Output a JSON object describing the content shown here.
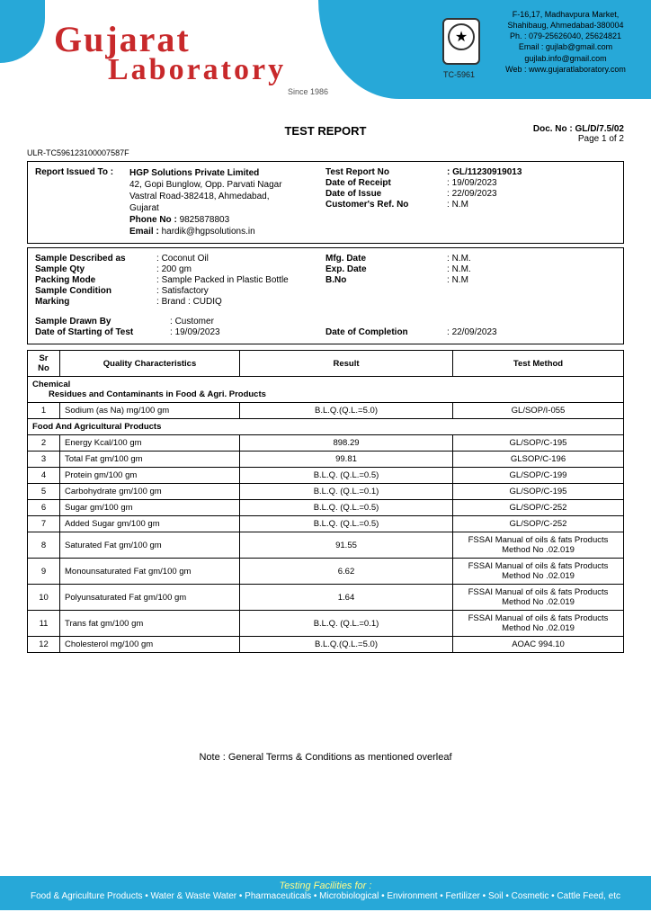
{
  "header": {
    "logo1": "Gujarat",
    "logo2": "Laboratory",
    "since": "Since 1986",
    "tc": "TC-5961",
    "addr1": "F-16,17, Madhavpura Market,",
    "addr2": "Shahibaug, Ahmedabad-380004",
    "ph": "Ph. : 079-25626040, 25624821",
    "em1": "Email : gujlab@gmail.com",
    "em2": "gujlab.info@gmail.com",
    "web": "Web : www.gujaratlaboratory.com"
  },
  "title": "TEST REPORT",
  "docno": "Doc. No : GL/D/7.5/02",
  "pageno": "Page 1 of 2",
  "ulr": "ULR-TC596123100007587F",
  "block1": {
    "issued_label": "Report Issued To :",
    "company": "HGP Solutions Private Limited",
    "a1": "42, Gopi Bunglow, Opp. Parvati Nagar",
    "a2": "Vastral Road-382418, Ahmedabad,",
    "a3": "Gujarat",
    "phone_l": "Phone No :",
    "phone_v": "9825878803",
    "email_l": "Email :",
    "email_v": "hardik@hgpsolutions.in",
    "trn_l": "Test Report No",
    "trn_v": "GL/11230919013",
    "dor_l": "Date of Receipt",
    "dor_v": "19/09/2023",
    "doi_l": "Date of Issue",
    "doi_v": "22/09/2023",
    "crn_l": "Customer's Ref. No",
    "crn_v": "N.M"
  },
  "block2": {
    "desc_l": "Sample Described as",
    "desc_v": "Coconut Oil",
    "qty_l": "Sample Qty",
    "qty_v": "200 gm",
    "pack_l": "Packing Mode",
    "pack_v": "Sample Packed in Plastic Bottle",
    "cond_l": "Sample Condition",
    "cond_v": "Satisfactory",
    "mark_l": "Marking",
    "mark_v": "Brand : CUDIQ",
    "mfg_l": "Mfg. Date",
    "mfg_v": "N.M.",
    "exp_l": "Exp. Date",
    "exp_v": "N.M.",
    "bno_l": "B.No",
    "bno_v": "N.M",
    "drawn_l": "Sample Drawn By",
    "drawn_v": "Customer",
    "start_l": "Date of Starting of Test",
    "start_v": "19/09/2023",
    "comp_l": "Date of Completion",
    "comp_v": "22/09/2023"
  },
  "table": {
    "h_sr": "Sr No",
    "h_char": "Quality Characteristics",
    "h_res": "Result",
    "h_meth": "Test Method",
    "sec1a": "Chemical",
    "sec1b": "Residues and Contaminants in Food & Agri. Products",
    "sec2": "Food And Agricultural Products",
    "rows": [
      {
        "sr": "1",
        "c": "Sodium (as Na) mg/100 gm",
        "r": "B.L.Q.(Q.L.=5.0)",
        "m": "GL/SOP/I-055"
      },
      {
        "sr": "2",
        "c": "Energy Kcal/100 gm",
        "r": "898.29",
        "m": "GL/SOP/C-195"
      },
      {
        "sr": "3",
        "c": "Total Fat gm/100 gm",
        "r": "99.81",
        "m": "GLSOP/C-196"
      },
      {
        "sr": "4",
        "c": "Protein gm/100 gm",
        "r": "B.L.Q. (Q.L.=0.5)",
        "m": "GL/SOP/C-199"
      },
      {
        "sr": "5",
        "c": "Carbohydrate gm/100 gm",
        "r": "B.L.Q. (Q.L.=0.1)",
        "m": "GL/SOP/C-195"
      },
      {
        "sr": "6",
        "c": "Sugar gm/100 gm",
        "r": "B.L.Q. (Q.L.=0.5)",
        "m": "GL/SOP/C-252"
      },
      {
        "sr": "7",
        "c": "Added Sugar gm/100 gm",
        "r": "B.L.Q. (Q.L.=0.5)",
        "m": "GL/SOP/C-252"
      },
      {
        "sr": "8",
        "c": "Saturated Fat gm/100 gm",
        "r": "91.55",
        "m": "FSSAI Manual of oils & fats Products Method No .02.019"
      },
      {
        "sr": "9",
        "c": "Monounsaturated Fat gm/100 gm",
        "r": "6.62",
        "m": "FSSAI Manual of oils & fats Products Method No .02.019"
      },
      {
        "sr": "10",
        "c": "Polyunsaturated Fat gm/100 gm",
        "r": "1.64",
        "m": "FSSAI Manual of oils & fats Products Method No .02.019"
      },
      {
        "sr": "11",
        "c": "Trans fat gm/100 gm",
        "r": "B.L.Q. (Q.L.=0.1)",
        "m": "FSSAI Manual of oils & fats Products Method No .02.019"
      },
      {
        "sr": "12",
        "c": "Cholesterol mg/100 gm",
        "r": "B.L.Q.(Q.L.=5.0)",
        "m": "AOAC 994.10"
      }
    ]
  },
  "note": "Note : General Terms & Conditions as mentioned overleaf",
  "footer": {
    "heading": "Testing Facilities for :",
    "line": "Food & Agriculture Products • Water & Waste Water • Pharmaceuticals • Microbiological • Environment • Fertilizer • Soil • Cosmetic • Cattle Feed, etc"
  }
}
